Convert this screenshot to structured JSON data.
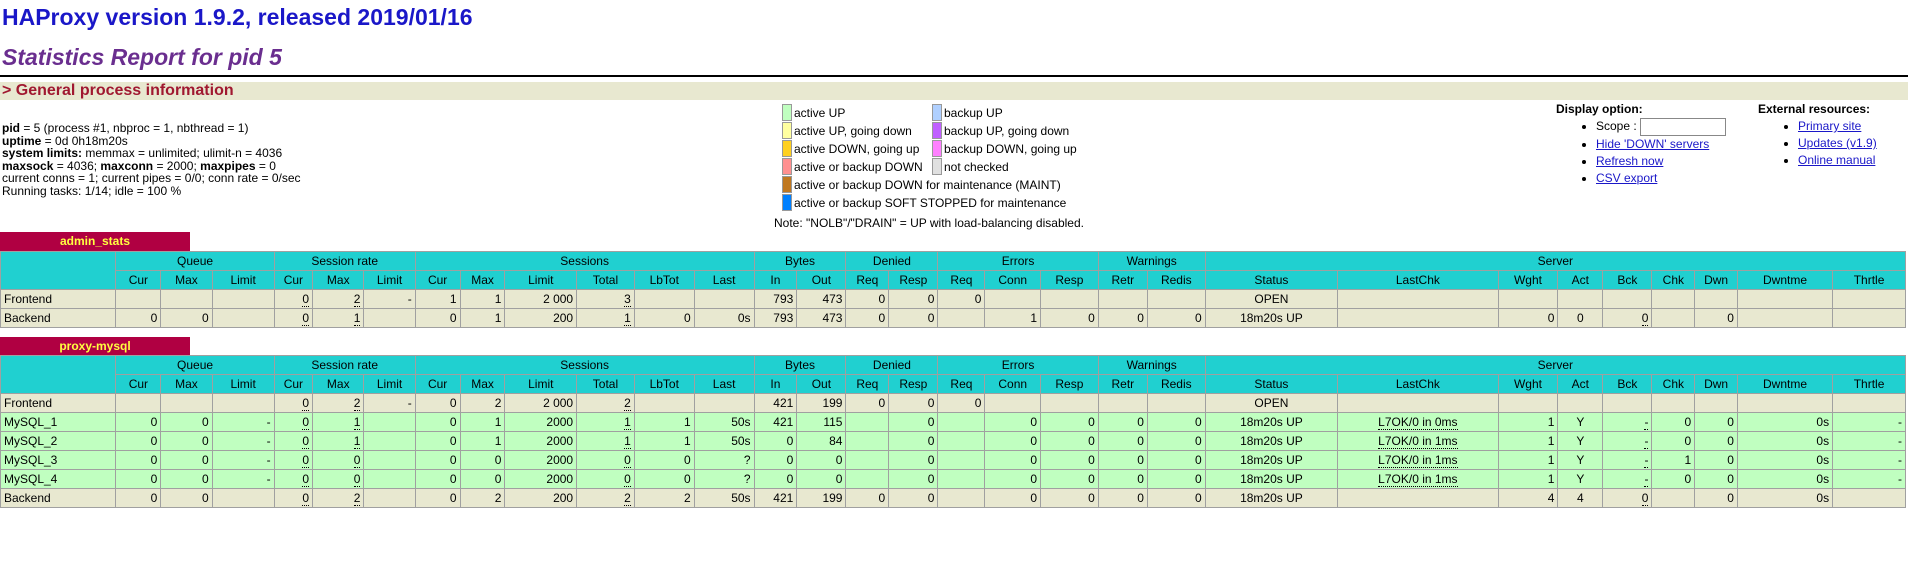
{
  "header": {
    "title": "HAProxy version 1.9.2, released 2019/01/16",
    "subtitle": "Statistics Report for pid 5"
  },
  "section_title": "> General process information",
  "process_info": {
    "pid_label": "pid",
    "pid_text": " = 5 (process #1, nbproc = 1, nbthread = 1)",
    "uptime_label": "uptime",
    "uptime_text": " = 0d 0h18m20s",
    "limits_label": "system limits:",
    "limits_text": " memmax = unlimited; ulimit-n = 4036",
    "maxsock_label": "maxsock",
    "maxsock_text": " = 4036; ",
    "maxconn_label": "maxconn",
    "maxconn_text": " = 2000; ",
    "maxpipes_label": "maxpipes",
    "maxpipes_text": " = 0",
    "conns_text": "current conns = 1; current pipes = 0/0; conn rate = 0/sec",
    "tasks_text": "Running tasks: 1/14; idle = 100 %"
  },
  "legend": {
    "left": [
      {
        "label": "active UP",
        "color": "#c0ffc0"
      },
      {
        "label": "active UP, going down",
        "color": "#ffffa0"
      },
      {
        "label": "active DOWN, going up",
        "color": "#ffd020"
      },
      {
        "label": "active or backup DOWN",
        "color": "#ff9090"
      },
      {
        "label": "active or backup DOWN for maintenance (MAINT)",
        "color": "#c07820"
      },
      {
        "label": "active or backup SOFT STOPPED for maintenance",
        "color": "#0080ff"
      }
    ],
    "right": [
      {
        "label": "backup UP",
        "color": "#b0d0ff"
      },
      {
        "label": "backup UP, going down",
        "color": "#c060ff"
      },
      {
        "label": "backup DOWN, going up",
        "color": "#ff80ff"
      },
      {
        "label": "not checked",
        "color": "#e0e0e0"
      }
    ],
    "note": "Note: \"NOLB\"/\"DRAIN\" = UP with load-balancing disabled."
  },
  "display_options": {
    "title": "Display option:",
    "scope_label": "Scope :",
    "scope_value": "",
    "links": [
      "Hide 'DOWN' servers",
      "Refresh now",
      "CSV export"
    ]
  },
  "external_resources": {
    "title": "External resources:",
    "links": [
      "Primary site",
      "Updates (v1.9)",
      "Online manual"
    ]
  },
  "column_groups": [
    "Queue",
    "Session rate",
    "Sessions",
    "Bytes",
    "Denied",
    "Errors",
    "Warnings",
    "Server"
  ],
  "columns": [
    "Cur",
    "Max",
    "Limit",
    "Cur",
    "Max",
    "Limit",
    "Cur",
    "Max",
    "Limit",
    "Total",
    "LbTot",
    "Last",
    "In",
    "Out",
    "Req",
    "Resp",
    "Req",
    "Conn",
    "Resp",
    "Retr",
    "Redis",
    "Status",
    "LastChk",
    "Wght",
    "Act",
    "Bck",
    "Chk",
    "Dwn",
    "Dwntme",
    "Thrtle"
  ],
  "proxies": [
    {
      "name": "admin_stats",
      "rows": [
        {
          "type": "front",
          "cells": [
            "Frontend",
            "",
            "",
            "",
            "0",
            "2",
            "-",
            "1",
            "1",
            "2 000",
            "3",
            "",
            "",
            "793",
            "473",
            "0",
            "0",
            "0",
            "",
            "",
            "",
            "",
            "OPEN",
            "",
            "",
            "",
            "",
            "",
            "",
            "",
            ""
          ]
        },
        {
          "type": "back",
          "cells": [
            "Backend",
            "0",
            "0",
            "",
            "0",
            "1",
            "",
            "0",
            "1",
            "200",
            "1",
            "0",
            "0s",
            "793",
            "473",
            "0",
            "0",
            "",
            "1",
            "0",
            "0",
            "0",
            "18m20s UP",
            "",
            "0",
            "0",
            "0",
            "",
            "0",
            "",
            ""
          ]
        }
      ]
    },
    {
      "name": "proxy-mysql",
      "rows": [
        {
          "type": "front",
          "cells": [
            "Frontend",
            "",
            "",
            "",
            "0",
            "2",
            "-",
            "0",
            "2",
            "2 000",
            "2",
            "",
            "",
            "421",
            "199",
            "0",
            "0",
            "0",
            "",
            "",
            "",
            "",
            "OPEN",
            "",
            "",
            "",
            "",
            "",
            "",
            "",
            ""
          ]
        },
        {
          "type": "srv",
          "cells": [
            "MySQL_1",
            "0",
            "0",
            "-",
            "0",
            "1",
            "",
            "0",
            "1",
            "2000",
            "1",
            "1",
            "50s",
            "421",
            "115",
            "",
            "0",
            "",
            "0",
            "0",
            "0",
            "0",
            "18m20s UP",
            "L7OK/0 in 0ms",
            "1",
            "Y",
            "-",
            "0",
            "0",
            "0s",
            "-"
          ]
        },
        {
          "type": "srv",
          "cells": [
            "MySQL_2",
            "0",
            "0",
            "-",
            "0",
            "1",
            "",
            "0",
            "1",
            "2000",
            "1",
            "1",
            "50s",
            "0",
            "84",
            "",
            "0",
            "",
            "0",
            "0",
            "0",
            "0",
            "18m20s UP",
            "L7OK/0 in 1ms",
            "1",
            "Y",
            "-",
            "0",
            "0",
            "0s",
            "-"
          ]
        },
        {
          "type": "srv",
          "cells": [
            "MySQL_3",
            "0",
            "0",
            "-",
            "0",
            "0",
            "",
            "0",
            "0",
            "2000",
            "0",
            "0",
            "?",
            "0",
            "0",
            "",
            "0",
            "",
            "0",
            "0",
            "0",
            "0",
            "18m20s UP",
            "L7OK/0 in 1ms",
            "1",
            "Y",
            "-",
            "1",
            "0",
            "0s",
            "-"
          ]
        },
        {
          "type": "srv",
          "cells": [
            "MySQL_4",
            "0",
            "0",
            "-",
            "0",
            "0",
            "",
            "0",
            "0",
            "2000",
            "0",
            "0",
            "?",
            "0",
            "0",
            "",
            "0",
            "",
            "0",
            "0",
            "0",
            "0",
            "18m20s UP",
            "L7OK/0 in 1ms",
            "1",
            "Y",
            "-",
            "0",
            "0",
            "0s",
            "-"
          ]
        },
        {
          "type": "back",
          "cells": [
            "Backend",
            "0",
            "0",
            "",
            "0",
            "2",
            "",
            "0",
            "2",
            "200",
            "2",
            "2",
            "50s",
            "421",
            "199",
            "0",
            "0",
            "",
            "0",
            "0",
            "0",
            "0",
            "18m20s UP",
            "",
            "4",
            "4",
            "0",
            "",
            "0",
            "0s",
            ""
          ]
        }
      ]
    }
  ]
}
